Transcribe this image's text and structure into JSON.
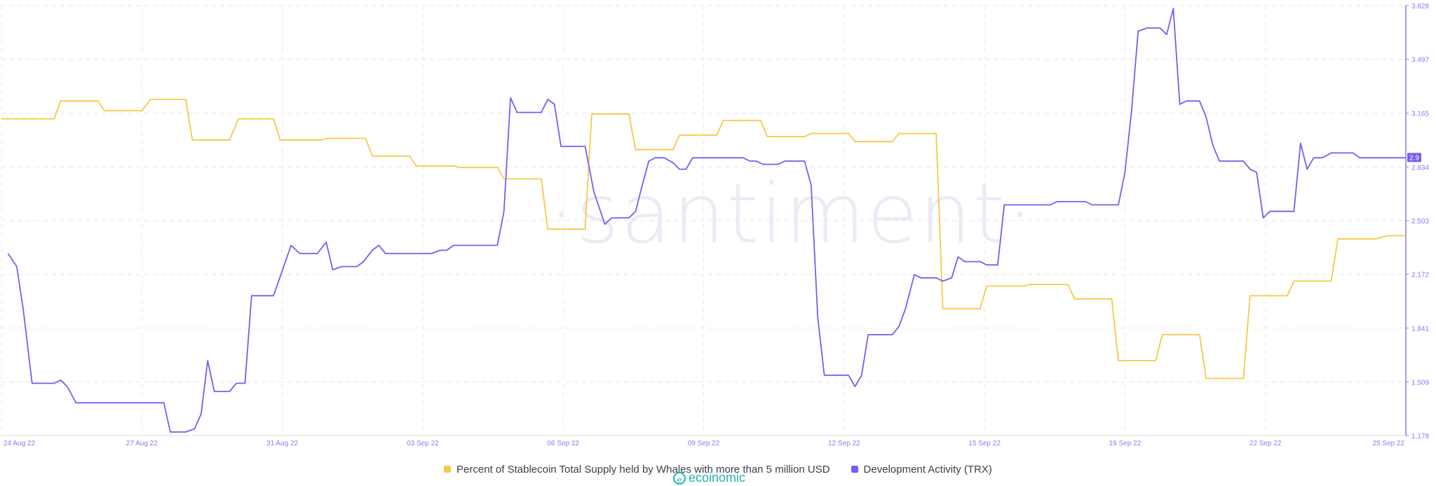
{
  "chart_data": {
    "type": "line",
    "watermark": "·santiment·",
    "x_labels": [
      "24 Aug 22",
      "27 Aug 22",
      "31 Aug 22",
      "03 Sep 22",
      "06 Sep 22",
      "09 Sep 22",
      "12 Sep 22",
      "15 Sep 22",
      "19 Sep 22",
      "22 Sep 22",
      "25 Sep 22"
    ],
    "y_ticks": [
      "1.178",
      "1.509",
      "1.841",
      "2.172",
      "2.503",
      "2.834",
      "3.165",
      "3.497",
      "3.828"
    ],
    "ylim": [
      1.178,
      3.828
    ],
    "x_range": [
      0,
      32
    ],
    "current_value_label": "2.9",
    "grid": true,
    "legend_position": "bottom-center",
    "series": [
      {
        "name": "Percent of Stablecoin Total Supply held by Whales with more than 5 million USD",
        "color": "#f7c945",
        "axis": "hidden",
        "points": [
          [
            0,
            3.13
          ],
          [
            1.2,
            3.13
          ],
          [
            1.35,
            3.24
          ],
          [
            2.2,
            3.24
          ],
          [
            2.35,
            3.18
          ],
          [
            3.2,
            3.18
          ],
          [
            3.4,
            3.25
          ],
          [
            4.2,
            3.25
          ],
          [
            4.35,
            3.0
          ],
          [
            5.2,
            3.0
          ],
          [
            5.4,
            3.13
          ],
          [
            6.2,
            3.13
          ],
          [
            6.35,
            3.0
          ],
          [
            7.3,
            3.0
          ],
          [
            7.45,
            3.01
          ],
          [
            8.3,
            3.01
          ],
          [
            8.45,
            2.9
          ],
          [
            9.3,
            2.9
          ],
          [
            9.45,
            2.84
          ],
          [
            10.3,
            2.84
          ],
          [
            10.45,
            2.83
          ],
          [
            11.3,
            2.83
          ],
          [
            11.45,
            2.76
          ],
          [
            12.3,
            2.76
          ],
          [
            12.45,
            2.45
          ],
          [
            13.3,
            2.45
          ],
          [
            13.45,
            3.16
          ],
          [
            14.3,
            3.16
          ],
          [
            14.45,
            2.94
          ],
          [
            15.3,
            2.94
          ],
          [
            15.45,
            3.03
          ],
          [
            16.3,
            3.03
          ],
          [
            16.45,
            3.12
          ],
          [
            17.3,
            3.12
          ],
          [
            17.45,
            3.02
          ],
          [
            18.3,
            3.02
          ],
          [
            18.45,
            3.04
          ],
          [
            19.3,
            3.04
          ],
          [
            19.45,
            2.99
          ],
          [
            20.3,
            2.99
          ],
          [
            20.45,
            3.04
          ],
          [
            21.3,
            3.04
          ],
          [
            21.45,
            1.96
          ],
          [
            22.3,
            1.96
          ],
          [
            22.45,
            2.1
          ],
          [
            23.3,
            2.1
          ],
          [
            23.45,
            2.11
          ],
          [
            24.3,
            2.11
          ],
          [
            24.45,
            2.02
          ],
          [
            25.3,
            2.02
          ],
          [
            25.45,
            1.64
          ],
          [
            26.3,
            1.64
          ],
          [
            26.45,
            1.8
          ],
          [
            27.3,
            1.8
          ],
          [
            27.45,
            1.53
          ],
          [
            28.3,
            1.53
          ],
          [
            28.45,
            2.04
          ],
          [
            29.3,
            2.04
          ],
          [
            29.45,
            2.13
          ],
          [
            30.3,
            2.13
          ],
          [
            30.45,
            2.39
          ],
          [
            31.3,
            2.39
          ],
          [
            31.6,
            2.41
          ],
          [
            32,
            2.41
          ]
        ]
      },
      {
        "name": "Development Activity (TRX)",
        "color": "#7b5cf0",
        "axis": "right",
        "points": [
          [
            0.15,
            2.3
          ],
          [
            0.35,
            2.22
          ],
          [
            0.5,
            1.95
          ],
          [
            0.7,
            1.5
          ],
          [
            1.2,
            1.5
          ],
          [
            1.35,
            1.52
          ],
          [
            1.5,
            1.48
          ],
          [
            1.7,
            1.38
          ],
          [
            2.5,
            1.38
          ],
          [
            3.2,
            1.38
          ],
          [
            3.7,
            1.38
          ],
          [
            3.85,
            1.2
          ],
          [
            4.2,
            1.2
          ],
          [
            4.4,
            1.22
          ],
          [
            4.55,
            1.31
          ],
          [
            4.7,
            1.64
          ],
          [
            4.85,
            1.45
          ],
          [
            5.2,
            1.45
          ],
          [
            5.35,
            1.5
          ],
          [
            5.55,
            1.5
          ],
          [
            5.7,
            2.04
          ],
          [
            6.2,
            2.04
          ],
          [
            6.6,
            2.35
          ],
          [
            6.8,
            2.3
          ],
          [
            7.2,
            2.3
          ],
          [
            7.4,
            2.37
          ],
          [
            7.55,
            2.2
          ],
          [
            7.75,
            2.22
          ],
          [
            8.1,
            2.22
          ],
          [
            8.25,
            2.25
          ],
          [
            8.45,
            2.32
          ],
          [
            8.6,
            2.35
          ],
          [
            8.75,
            2.3
          ],
          [
            9.3,
            2.3
          ],
          [
            9.8,
            2.3
          ],
          [
            10.0,
            2.32
          ],
          [
            10.15,
            2.32
          ],
          [
            10.3,
            2.35
          ],
          [
            11.3,
            2.35
          ],
          [
            11.45,
            2.56
          ],
          [
            11.6,
            3.26
          ],
          [
            11.75,
            3.17
          ],
          [
            12.3,
            3.17
          ],
          [
            12.45,
            3.25
          ],
          [
            12.6,
            3.22
          ],
          [
            12.75,
            2.96
          ],
          [
            13.3,
            2.96
          ],
          [
            13.5,
            2.68
          ],
          [
            13.75,
            2.48
          ],
          [
            13.9,
            2.52
          ],
          [
            14.3,
            2.52
          ],
          [
            14.45,
            2.56
          ],
          [
            14.6,
            2.72
          ],
          [
            14.75,
            2.87
          ],
          [
            14.9,
            2.89
          ],
          [
            15.1,
            2.89
          ],
          [
            15.3,
            2.86
          ],
          [
            15.45,
            2.82
          ],
          [
            15.6,
            2.82
          ],
          [
            15.75,
            2.89
          ],
          [
            16.3,
            2.89
          ],
          [
            16.9,
            2.89
          ],
          [
            17.05,
            2.87
          ],
          [
            17.2,
            2.87
          ],
          [
            17.35,
            2.85
          ],
          [
            17.7,
            2.85
          ],
          [
            17.85,
            2.87
          ],
          [
            18.3,
            2.87
          ],
          [
            18.45,
            2.72
          ],
          [
            18.6,
            1.91
          ],
          [
            18.75,
            1.55
          ],
          [
            19.3,
            1.55
          ],
          [
            19.45,
            1.48
          ],
          [
            19.6,
            1.55
          ],
          [
            19.75,
            1.8
          ],
          [
            20.3,
            1.8
          ],
          [
            20.45,
            1.85
          ],
          [
            20.6,
            1.96
          ],
          [
            20.8,
            2.17
          ],
          [
            20.95,
            2.15
          ],
          [
            21.3,
            2.15
          ],
          [
            21.45,
            2.13
          ],
          [
            21.65,
            2.15
          ],
          [
            21.8,
            2.28
          ],
          [
            21.95,
            2.25
          ],
          [
            22.3,
            2.25
          ],
          [
            22.45,
            2.23
          ],
          [
            22.7,
            2.23
          ],
          [
            22.85,
            2.6
          ],
          [
            23.3,
            2.6
          ],
          [
            23.9,
            2.6
          ],
          [
            24.05,
            2.62
          ],
          [
            24.7,
            2.62
          ],
          [
            24.85,
            2.6
          ],
          [
            25.3,
            2.6
          ],
          [
            25.45,
            2.6
          ],
          [
            25.6,
            2.8
          ],
          [
            25.75,
            3.18
          ],
          [
            25.9,
            3.67
          ],
          [
            26.1,
            3.69
          ],
          [
            26.4,
            3.69
          ],
          [
            26.55,
            3.65
          ],
          [
            26.7,
            3.81
          ],
          [
            26.85,
            3.22
          ],
          [
            27.0,
            3.24
          ],
          [
            27.3,
            3.24
          ],
          [
            27.45,
            3.14
          ],
          [
            27.6,
            2.97
          ],
          [
            27.75,
            2.87
          ],
          [
            28.3,
            2.87
          ],
          [
            28.45,
            2.82
          ],
          [
            28.6,
            2.8
          ],
          [
            28.75,
            2.52
          ],
          [
            28.9,
            2.56
          ],
          [
            29.3,
            2.56
          ],
          [
            29.45,
            2.56
          ],
          [
            29.6,
            2.98
          ],
          [
            29.75,
            2.82
          ],
          [
            29.9,
            2.89
          ],
          [
            30.1,
            2.89
          ],
          [
            30.3,
            2.92
          ],
          [
            30.8,
            2.92
          ],
          [
            30.95,
            2.89
          ],
          [
            31.3,
            2.89
          ],
          [
            31.6,
            2.89
          ],
          [
            32,
            2.89
          ]
        ]
      }
    ]
  },
  "legend": {
    "items": [
      {
        "label": "Percent of Stablecoin Total Supply held by Whales with more than 5 million USD",
        "color": "#f7c945"
      },
      {
        "label": "Development Activity (TRX)",
        "color": "#7b5cf0"
      }
    ]
  },
  "brand": {
    "text": "ecoinomic",
    "icon": "e-circle-logo"
  }
}
